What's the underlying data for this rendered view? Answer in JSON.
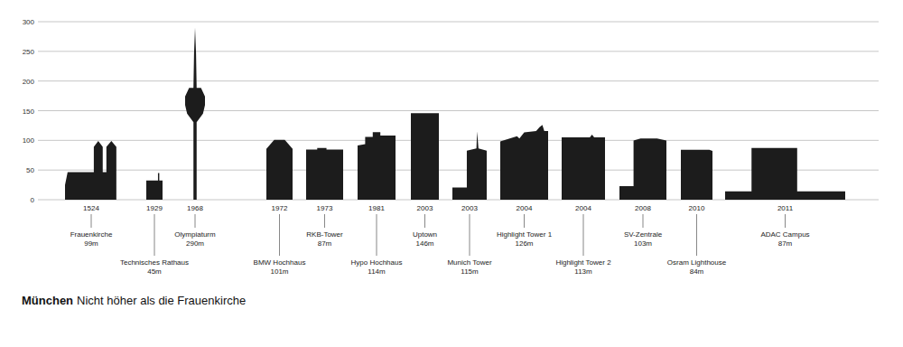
{
  "chart_data": {
    "type": "bar",
    "title": "München",
    "subtitle": "Nicht höher als die Frauenkirche",
    "categories": [
      "Frauenkirche",
      "Technisches Rathaus",
      "Olympiaturm",
      "BMW Hochhaus",
      "RKB-Tower",
      "Hypo Hochhaus",
      "Uptown",
      "Munich Tower",
      "Highlight Tower 1",
      "Highlight Tower 2",
      "SV-Zentrale",
      "Osram Lighthouse",
      "ADAC Campus"
    ],
    "years": [
      1524,
      1929,
      1968,
      1972,
      1973,
      1981,
      2003,
      2003,
      2004,
      2004,
      2008,
      2010,
      2011
    ],
    "values": [
      99,
      45,
      290,
      101,
      87,
      114,
      146,
      115,
      126,
      113,
      103,
      84,
      87
    ],
    "value_labels": [
      "99m",
      "45m",
      "290m",
      "101m",
      "87m",
      "114m",
      "146m",
      "115m",
      "126m",
      "113m",
      "103m",
      "84m",
      "87m"
    ],
    "color": "#1c1c1c",
    "ylim": [
      0,
      300
    ],
    "yticks": [
      0,
      50,
      100,
      150,
      200,
      250,
      300
    ],
    "grid": true
  }
}
